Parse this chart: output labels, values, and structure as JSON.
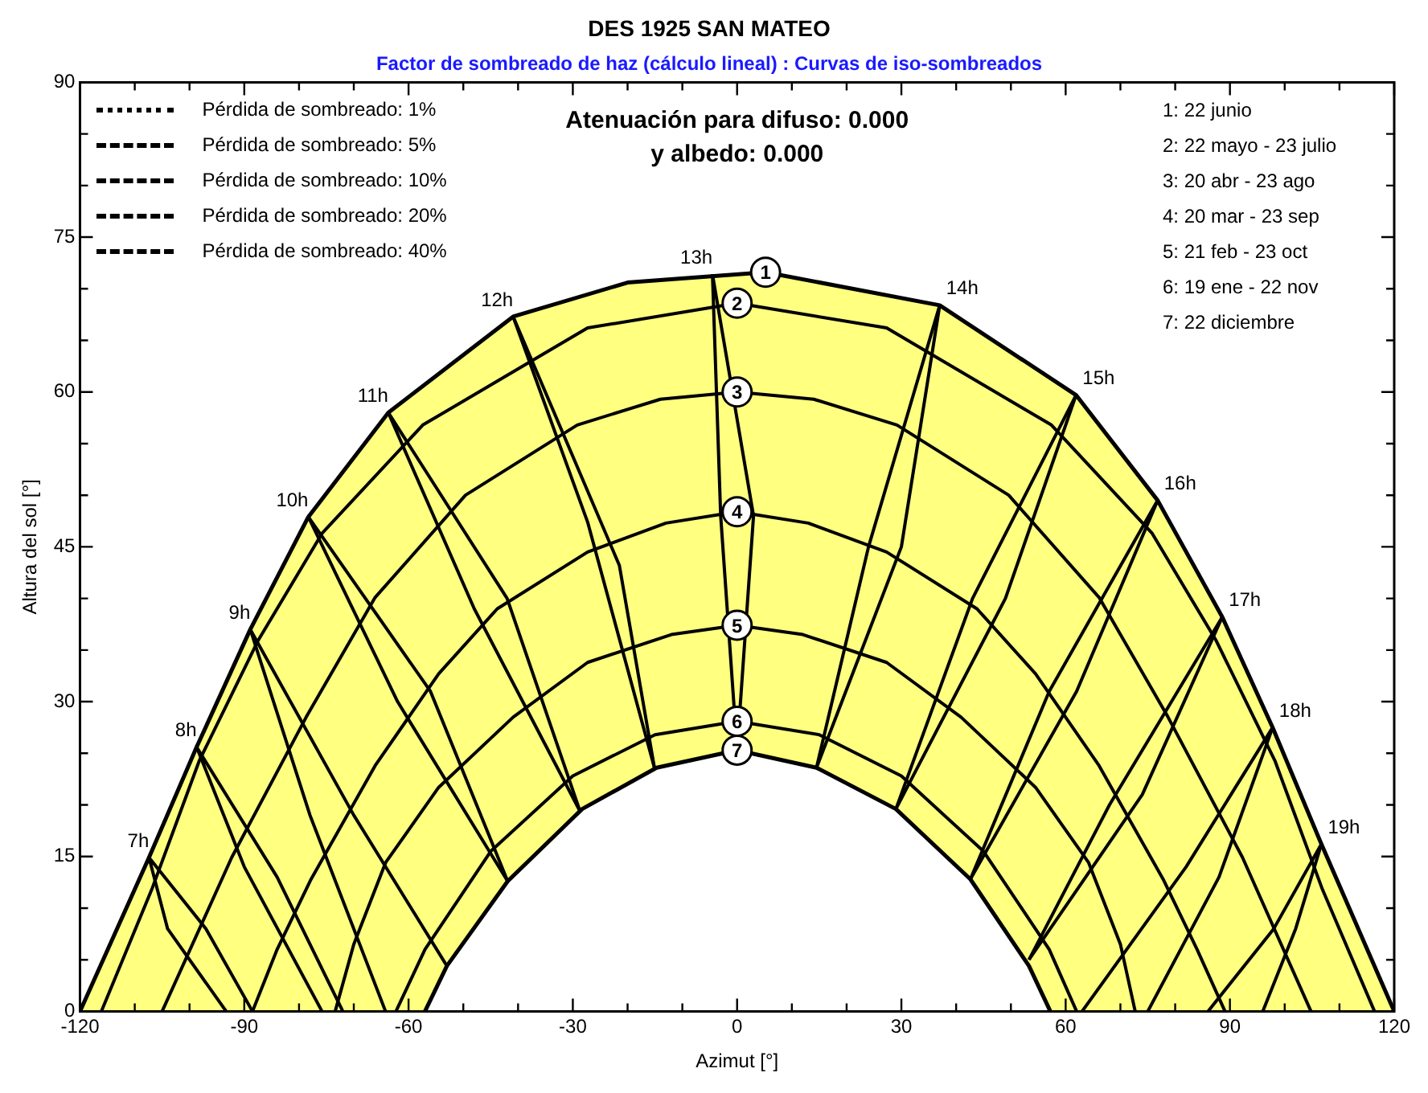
{
  "chart_data": {
    "type": "line",
    "title": "DES 1925 SAN MATEO",
    "subtitle": "Factor de sombreado de haz (cálculo lineal) : Curvas de iso-sombreados",
    "xlabel": "Azimut [°]",
    "ylabel": "Altura del sol [°]",
    "xlim": [
      -120,
      120
    ],
    "ylim": [
      0,
      90
    ],
    "xticks": [
      -120,
      {
        "value": -110,
        "label": null
      },
      {
        "value": -100,
        "label": null
      },
      -90,
      {
        "value": -80,
        "label": null
      },
      {
        "value": -70,
        "label": null
      },
      -60,
      {
        "value": -50,
        "label": null
      },
      {
        "value": -40,
        "label": null
      },
      -30,
      {
        "value": -20,
        "label": null
      },
      {
        "value": -10,
        "label": null
      },
      0,
      {
        "value": 10,
        "label": null
      },
      {
        "value": 20,
        "label": null
      },
      30,
      {
        "value": 40,
        "label": null
      },
      {
        "value": 50,
        "label": null
      },
      60,
      {
        "value": 70,
        "label": null
      },
      {
        "value": 80,
        "label": null
      },
      90,
      {
        "value": 100,
        "label": null
      },
      {
        "value": 110,
        "label": null
      },
      120
    ],
    "yticks": [
      0,
      {
        "value": 5,
        "label": null
      },
      {
        "value": 10,
        "label": null
      },
      15,
      {
        "value": 20,
        "label": null
      },
      {
        "value": 25,
        "label": null
      },
      30,
      {
        "value": 35,
        "label": null
      },
      {
        "value": 40,
        "label": null
      },
      45,
      {
        "value": 50,
        "label": null
      },
      {
        "value": 55,
        "label": null
      },
      60,
      {
        "value": 65,
        "label": null
      },
      {
        "value": 70,
        "label": null
      },
      75,
      {
        "value": 80,
        "label": null
      },
      {
        "value": 85,
        "label": null
      },
      90
    ],
    "grid": false,
    "legend": "top left",
    "series": [
      {
        "name": "1",
        "type": "area",
        "color": "#ffff80",
        "x": [
          -120,
          -107.4,
          -98.7,
          -88.9,
          -78.3,
          -63.7,
          -40.9,
          -20,
          5.2,
          37,
          61.9,
          76.8,
          88.6,
          97.8,
          106.7,
          120
        ],
        "values": [
          0,
          14.9,
          25.6,
          37,
          47.9,
          58,
          67.3,
          70.6,
          71.6,
          68.4,
          59.7,
          49.5,
          38.2,
          27.5,
          16.2,
          0
        ]
      },
      {
        "name": "2",
        "color": "#000000",
        "x": [
          -116.1,
          -106.9,
          -98.2,
          -87.5,
          -75.8,
          -57.4,
          -27.3,
          0,
          27.3,
          57.4,
          75.8,
          87.5,
          98.2,
          106.9,
          116.4
        ],
        "values": [
          0,
          11.8,
          24.3,
          35.9,
          46.3,
          56.8,
          66.2,
          68.6,
          66.2,
          56.8,
          46.3,
          35.9,
          24.3,
          11.8,
          0
        ]
      },
      {
        "name": "3",
        "color": "#000000",
        "x": [
          -105,
          -92.3,
          -78.7,
          -66.1,
          -49.6,
          -29.2,
          -14,
          0,
          14,
          29.2,
          49.6,
          66.1,
          78.7,
          92.3,
          104.8
        ],
        "values": [
          0,
          14.9,
          28.5,
          40.1,
          50,
          56.8,
          59.3,
          60,
          59.3,
          56.8,
          50,
          40.1,
          28.5,
          14.9,
          0
        ]
      },
      {
        "name": "4",
        "color": "#000000",
        "x": [
          -88.5,
          -84,
          -77.8,
          -66.1,
          -54.5,
          -43.8,
          -27.3,
          -13,
          0,
          13,
          27.3,
          43.8,
          54.5,
          66.1,
          77.8,
          84,
          89.1
        ],
        "values": [
          0,
          6,
          12.8,
          23.8,
          32.7,
          39,
          44.5,
          47.3,
          48.4,
          47.3,
          44.5,
          39,
          32.7,
          23.8,
          12.8,
          6,
          0
        ]
      },
      {
        "name": "5",
        "color": "#000000",
        "x": [
          -73.4,
          -70,
          -64.2,
          -54.5,
          -40.9,
          -27.3,
          -12,
          0,
          12,
          27.3,
          40.9,
          54.5,
          64.2,
          70,
          72.7
        ],
        "values": [
          0,
          6.5,
          14.4,
          21.7,
          28.5,
          33.8,
          36.5,
          37.4,
          36.5,
          33.8,
          28.5,
          21.7,
          14.4,
          6.5,
          0
        ]
      },
      {
        "name": "6",
        "color": "#000000",
        "x": [
          -62.3,
          -57,
          -45,
          -30,
          -15,
          0,
          15,
          30,
          45,
          57,
          62
        ],
        "values": [
          0,
          6,
          15.5,
          22.8,
          26.8,
          28.1,
          26.8,
          22.8,
          15.5,
          6,
          0
        ]
      },
      {
        "name": "7",
        "type": "area",
        "color": "#ffffff",
        "x": [
          -57,
          -53,
          -41.9,
          -28.3,
          -14.7,
          0,
          14.5,
          29,
          42.6,
          53.3,
          57.2
        ],
        "values": [
          0,
          4.4,
          12.6,
          19.6,
          23.6,
          25.3,
          23.6,
          19.6,
          12.8,
          4.4,
          0
        ]
      },
      {
        "color": "#000000",
        "x": [
          -93.3,
          -104,
          -107.4,
          -97,
          -88.5
        ],
        "values": [
          0,
          8,
          14.9,
          8,
          0
        ]
      },
      {
        "color": "#000000",
        "x": [
          -75.8,
          -90,
          -98.7,
          -84,
          -72
        ],
        "values": [
          0,
          14,
          25.6,
          13,
          0
        ]
      },
      {
        "color": "#000000",
        "x": [
          -64.2,
          -78,
          -88.9,
          -70,
          -53
        ],
        "values": [
          0,
          19,
          37,
          19,
          4.4
        ]
      },
      {
        "color": "#000000",
        "x": [
          -78.3,
          -62,
          -41.9
        ],
        "values": [
          47.9,
          30,
          12.6
        ]
      },
      {
        "color": "#000000",
        "x": [
          -78.3,
          -56,
          -41.9
        ],
        "values": [
          47.9,
          31,
          12.6
        ]
      },
      {
        "color": "#000000",
        "x": [
          -63.7,
          -48,
          -28.7
        ],
        "values": [
          58,
          39,
          19.4
        ]
      },
      {
        "color": "#000000",
        "x": [
          -63.7,
          -42,
          -28.7
        ],
        "values": [
          58,
          40,
          19.4
        ]
      },
      {
        "color": "#000000",
        "x": [
          -40.9,
          -27.3,
          -15.1
        ],
        "values": [
          67.3,
          47.4,
          23.6
        ]
      },
      {
        "color": "#000000",
        "x": [
          -40.9,
          -21.5,
          -15.1
        ],
        "values": [
          67.3,
          43.2,
          23.6
        ]
      },
      {
        "color": "#000000",
        "x": [
          -4.5,
          -3,
          0
        ],
        "values": [
          71.4,
          48,
          25.3
        ]
      },
      {
        "color": "#000000",
        "x": [
          -4.5,
          3,
          0
        ],
        "values": [
          71.4,
          48,
          25.3
        ]
      },
      {
        "color": "#000000",
        "x": [
          37,
          24,
          14.5
        ],
        "values": [
          68.4,
          45,
          23.6
        ]
      },
      {
        "color": "#000000",
        "x": [
          37,
          30,
          14.5
        ],
        "values": [
          68.4,
          45,
          23.6
        ]
      },
      {
        "color": "#000000",
        "x": [
          61.9,
          43,
          29
        ],
        "values": [
          59.7,
          40,
          19.6
        ]
      },
      {
        "color": "#000000",
        "x": [
          61.9,
          49,
          29
        ],
        "values": [
          59.7,
          40,
          19.6
        ]
      },
      {
        "color": "#000000",
        "x": [
          76.8,
          57,
          42.6
        ],
        "values": [
          49.5,
          31,
          12.8
        ]
      },
      {
        "color": "#000000",
        "x": [
          76.8,
          62,
          42.6
        ],
        "values": [
          49.5,
          31,
          12.8
        ]
      },
      {
        "color": "#000000",
        "x": [
          88.6,
          68,
          53.3
        ],
        "values": [
          38.2,
          20,
          5
        ]
      },
      {
        "color": "#000000",
        "x": [
          88.6,
          74,
          53.3
        ],
        "values": [
          38.2,
          21,
          5
        ]
      },
      {
        "color": "#000000",
        "x": [
          63,
          82,
          97.8,
          88,
          75
        ],
        "values": [
          0,
          14,
          27.5,
          13,
          0
        ]
      },
      {
        "color": "#000000",
        "x": [
          86,
          98,
          106.7,
          102,
          96
        ],
        "values": [
          0,
          8,
          16.2,
          8,
          0
        ]
      },
      {
        "name": "Pérdida de sombreado: 1%",
        "color": "#000000",
        "line_style": "dotted"
      },
      {
        "name": "Pérdida de sombreado: 5%",
        "color": "#000000",
        "line_style": "dashed"
      },
      {
        "name": "Pérdida de sombreado: 10%",
        "color": "#000000",
        "line_style": "dashed"
      },
      {
        "name": "Pérdida de sombreado: 20%",
        "color": "#000000",
        "line_style": "dashed"
      },
      {
        "name": "Pérdida de sombreado: 40%",
        "color": "#000000",
        "line_style": "dashed"
      }
    ],
    "annotations": [
      "Atenuación para difuso: 0.000",
      "y albedo: 0.000",
      "1: 22 junio",
      "2: 22 mayo - 23 julio",
      "3: 20 abr - 23 ago",
      "4: 20 mar - 23 sep",
      "5: 21 feb - 23 oct",
      "6: 19 ene - 22 nov",
      "7: 22 diciembre",
      {
        "text": "7h",
        "x": -107.4,
        "y": 14.9
      },
      {
        "text": "8h",
        "x": -98.7,
        "y": 25.6
      },
      {
        "text": "9h",
        "x": -88.9,
        "y": 37
      },
      {
        "text": "10h",
        "x": -78.3,
        "y": 47.9
      },
      {
        "text": "11h",
        "x": -63.7,
        "y": 58
      },
      {
        "text": "12h",
        "x": -40.9,
        "y": 67.3
      },
      {
        "text": "13h",
        "x": -4.5,
        "y": 71.4
      },
      {
        "text": "14h",
        "x": 37,
        "y": 68.4
      },
      {
        "text": "15h",
        "x": 61.9,
        "y": 59.7
      },
      {
        "text": "16h",
        "x": 76.8,
        "y": 49.5
      },
      {
        "text": "17h",
        "x": 88.6,
        "y": 38.2
      },
      {
        "text": "18h",
        "x": 97.8,
        "y": 27.5
      },
      {
        "text": "19h",
        "x": 106.7,
        "y": 16.2
      }
    ]
  }
}
